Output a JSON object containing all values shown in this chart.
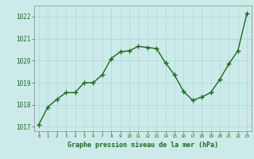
{
  "x": [
    0,
    1,
    2,
    3,
    4,
    5,
    6,
    7,
    8,
    9,
    10,
    11,
    12,
    13,
    14,
    15,
    16,
    17,
    18,
    19,
    20,
    21,
    22,
    23
  ],
  "y": [
    1017.1,
    1017.9,
    1018.25,
    1018.55,
    1018.55,
    1019.0,
    1019.0,
    1019.35,
    1020.1,
    1020.4,
    1020.45,
    1020.65,
    1020.6,
    1020.55,
    1019.9,
    1019.35,
    1018.6,
    1018.2,
    1018.35,
    1018.55,
    1019.15,
    1019.85,
    1020.45,
    1022.15
  ],
  "line_color": "#1a6b1a",
  "marker": "+",
  "marker_size": 4,
  "bg_color": "#cdeaea",
  "grid_color": "#a8d8d8",
  "xlabel": "Graphe pression niveau de la mer (hPa)",
  "xlabel_color": "#1a6b1a",
  "ylim": [
    1016.8,
    1022.5
  ],
  "yticks": [
    1017,
    1018,
    1019,
    1020,
    1021,
    1022
  ],
  "xticks": [
    0,
    1,
    2,
    3,
    4,
    5,
    6,
    7,
    8,
    9,
    10,
    11,
    12,
    13,
    14,
    15,
    16,
    17,
    18,
    19,
    20,
    21,
    22,
    23
  ],
  "tick_color": "#1a6b1a",
  "spine_color": "#888888",
  "linewidth": 1.0
}
